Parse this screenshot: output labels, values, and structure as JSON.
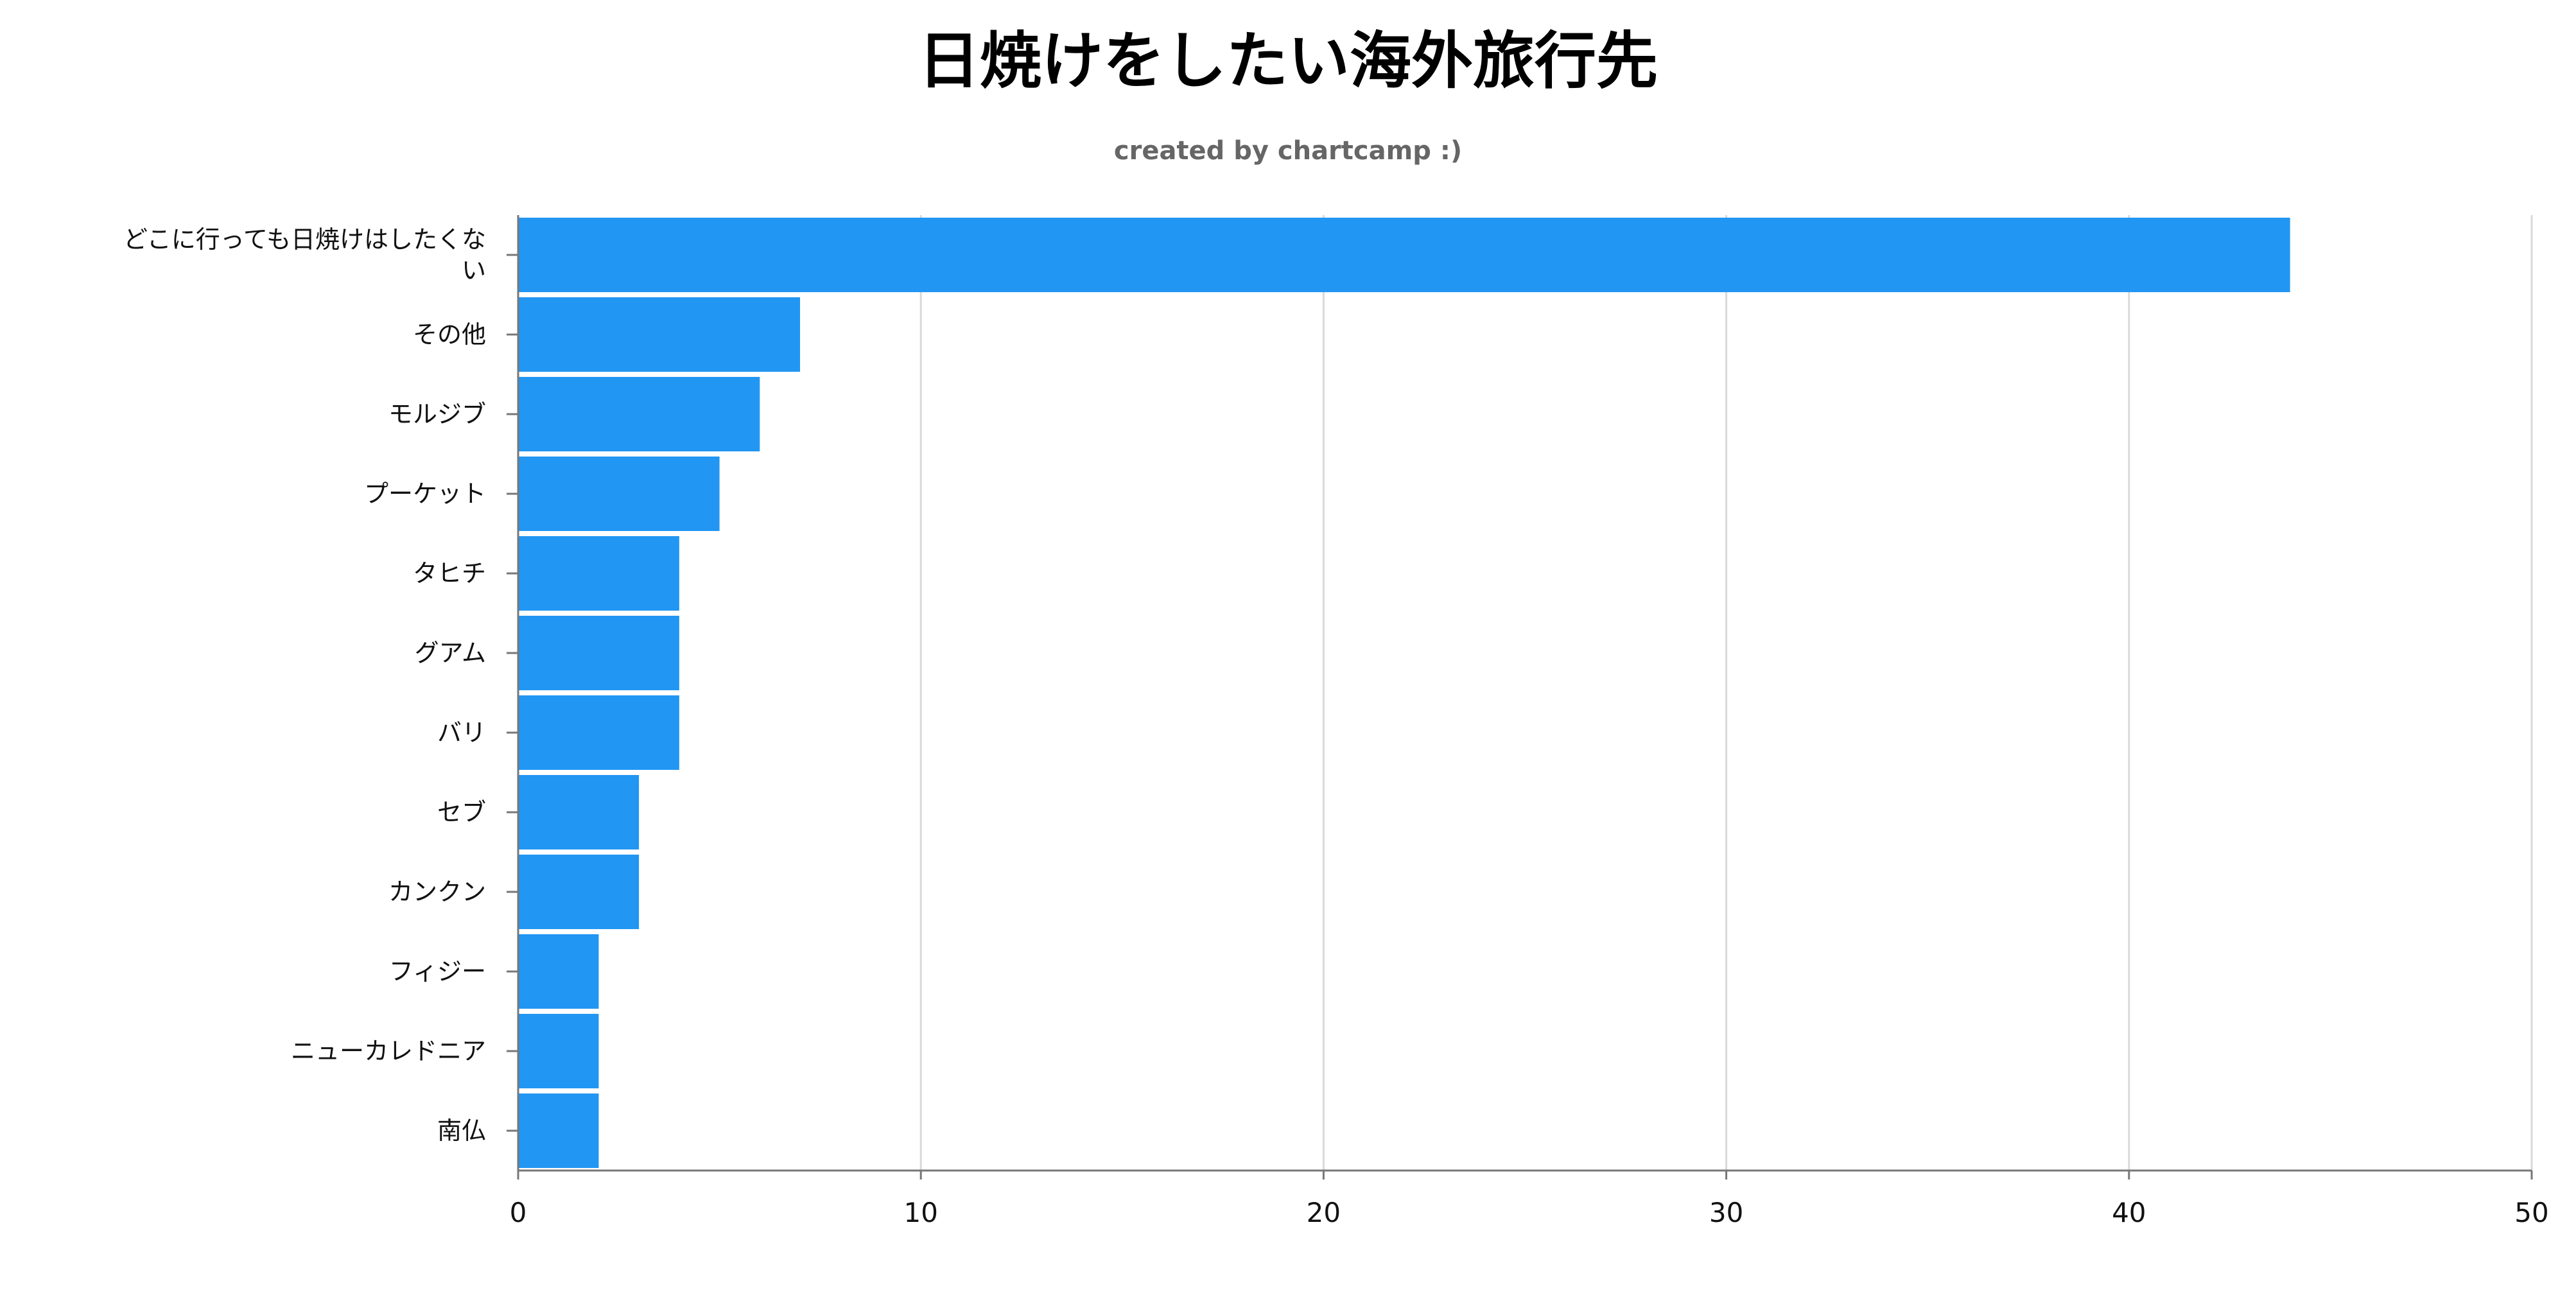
{
  "title": "日焼けをしたい海外旅行先",
  "subtitle": "created by chartcamp :)",
  "colors": {
    "bar": "#2196F3",
    "grid": "#d9d9d9",
    "axis": "#777777"
  },
  "chart_data": {
    "type": "bar",
    "orientation": "horizontal",
    "title": "日焼けをしたい海外旅行先",
    "subtitle": "created by chartcamp :)",
    "categories": [
      "どこに行っても日焼けはしたくない",
      "その他",
      "モルジブ",
      "プーケット",
      "タヒチ",
      "グアム",
      "バリ",
      "セブ",
      "カンクン",
      "フィジー",
      "ニューカレドニア",
      "南仏"
    ],
    "category_label_lines": [
      [
        "どこに行っても日焼けはしたくな",
        "い"
      ],
      [
        "その他"
      ],
      [
        "モルジブ"
      ],
      [
        "プーケット"
      ],
      [
        "タヒチ"
      ],
      [
        "グアム"
      ],
      [
        "バリ"
      ],
      [
        "セブ"
      ],
      [
        "カンクン"
      ],
      [
        "フィジー"
      ],
      [
        "ニューカレドニア"
      ],
      [
        "南仏"
      ]
    ],
    "values": [
      44,
      7,
      6,
      5,
      4,
      4,
      4,
      3,
      3,
      2,
      2,
      2
    ],
    "xlim": [
      0,
      50
    ],
    "xticks": [
      0,
      10,
      20,
      30,
      40,
      50
    ],
    "grid": true,
    "legend": "none"
  }
}
